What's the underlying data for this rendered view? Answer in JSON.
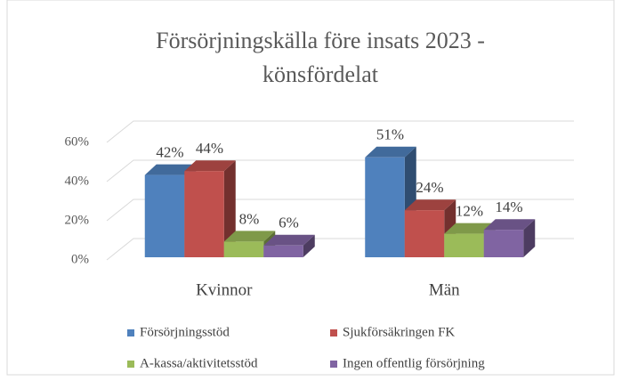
{
  "chart_data": {
    "type": "bar",
    "title": [
      "Försörjningskälla före insats 2023 -",
      "könsfördelat"
    ],
    "categories": [
      "Kvinnor",
      "Män"
    ],
    "series": [
      {
        "name": "Försörjningsstöd",
        "color": "#4f81bd",
        "values": [
          42,
          51
        ],
        "value_labels": [
          "42%",
          "51%"
        ]
      },
      {
        "name": "Sjukförsäkringen FK",
        "color": "#c0504d",
        "values": [
          44,
          24
        ],
        "value_labels": [
          "44%",
          "24%"
        ]
      },
      {
        "name": "A-kassa/aktivitetsstöd",
        "color": "#9bbb59",
        "values": [
          8,
          12
        ],
        "value_labels": [
          "8%",
          "12%"
        ]
      },
      {
        "name": "Ingen offentlig försörjning",
        "color": "#8064a2",
        "values": [
          6,
          14
        ],
        "value_labels": [
          "6%",
          "14%"
        ]
      }
    ],
    "ylim": [
      0,
      60
    ],
    "yticks": [
      {
        "value": 0,
        "label": "0%"
      },
      {
        "value": 20,
        "label": "20%"
      },
      {
        "value": 40,
        "label": "40%"
      },
      {
        "value": 60,
        "label": "60%"
      }
    ],
    "grid": true
  }
}
